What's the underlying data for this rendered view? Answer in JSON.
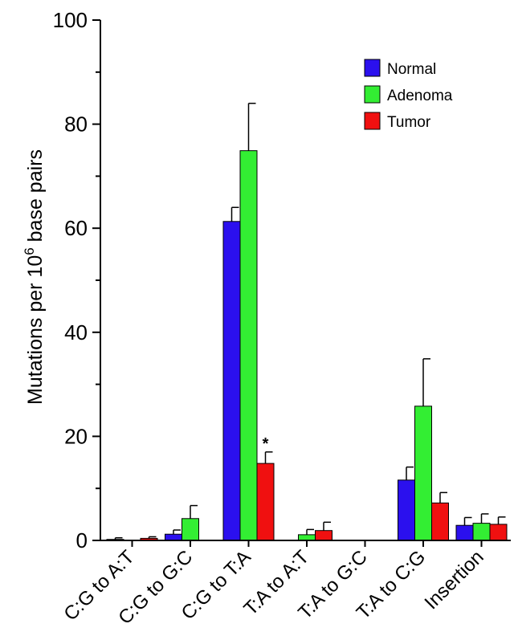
{
  "chart_data": {
    "type": "bar",
    "categories": [
      "C:G to A:T",
      "C:G to G:C",
      "C:G to T:A",
      "T:A to A:T",
      "T:A to G:C",
      "T:A to C:G",
      "Insertion"
    ],
    "series": [
      {
        "name": "Normal",
        "color": "#2b10ee",
        "values": [
          0.2,
          1.2,
          61.3,
          0.0,
          0.0,
          11.6,
          2.9
        ],
        "errors": [
          0.3,
          0.8,
          2.7,
          0.0,
          0.0,
          2.5,
          1.5
        ]
      },
      {
        "name": "Adenoma",
        "color": "#33ee33",
        "values": [
          0.0,
          4.2,
          74.9,
          1.1,
          0.0,
          25.8,
          3.3
        ],
        "errors": [
          0.0,
          2.5,
          9.1,
          1.0,
          0.0,
          9.1,
          1.8
        ]
      },
      {
        "name": "Tumor",
        "color": "#f01010",
        "values": [
          0.4,
          0.0,
          14.8,
          1.9,
          0.0,
          7.2,
          3.1
        ],
        "errors": [
          0.3,
          0.0,
          2.2,
          1.6,
          0.0,
          2.0,
          1.4
        ]
      }
    ],
    "ylabel": "Mutations per 10",
    "ylabel_sup": "6",
    "ylabel_tail": " base pairs",
    "ylim": [
      0,
      100
    ],
    "yticks": [
      "0",
      "20",
      "40",
      "60",
      "80",
      "100"
    ],
    "annotation": {
      "text": "*",
      "category_index": 2,
      "series_index": 2
    },
    "legend_position": "top-right",
    "grid": false
  }
}
